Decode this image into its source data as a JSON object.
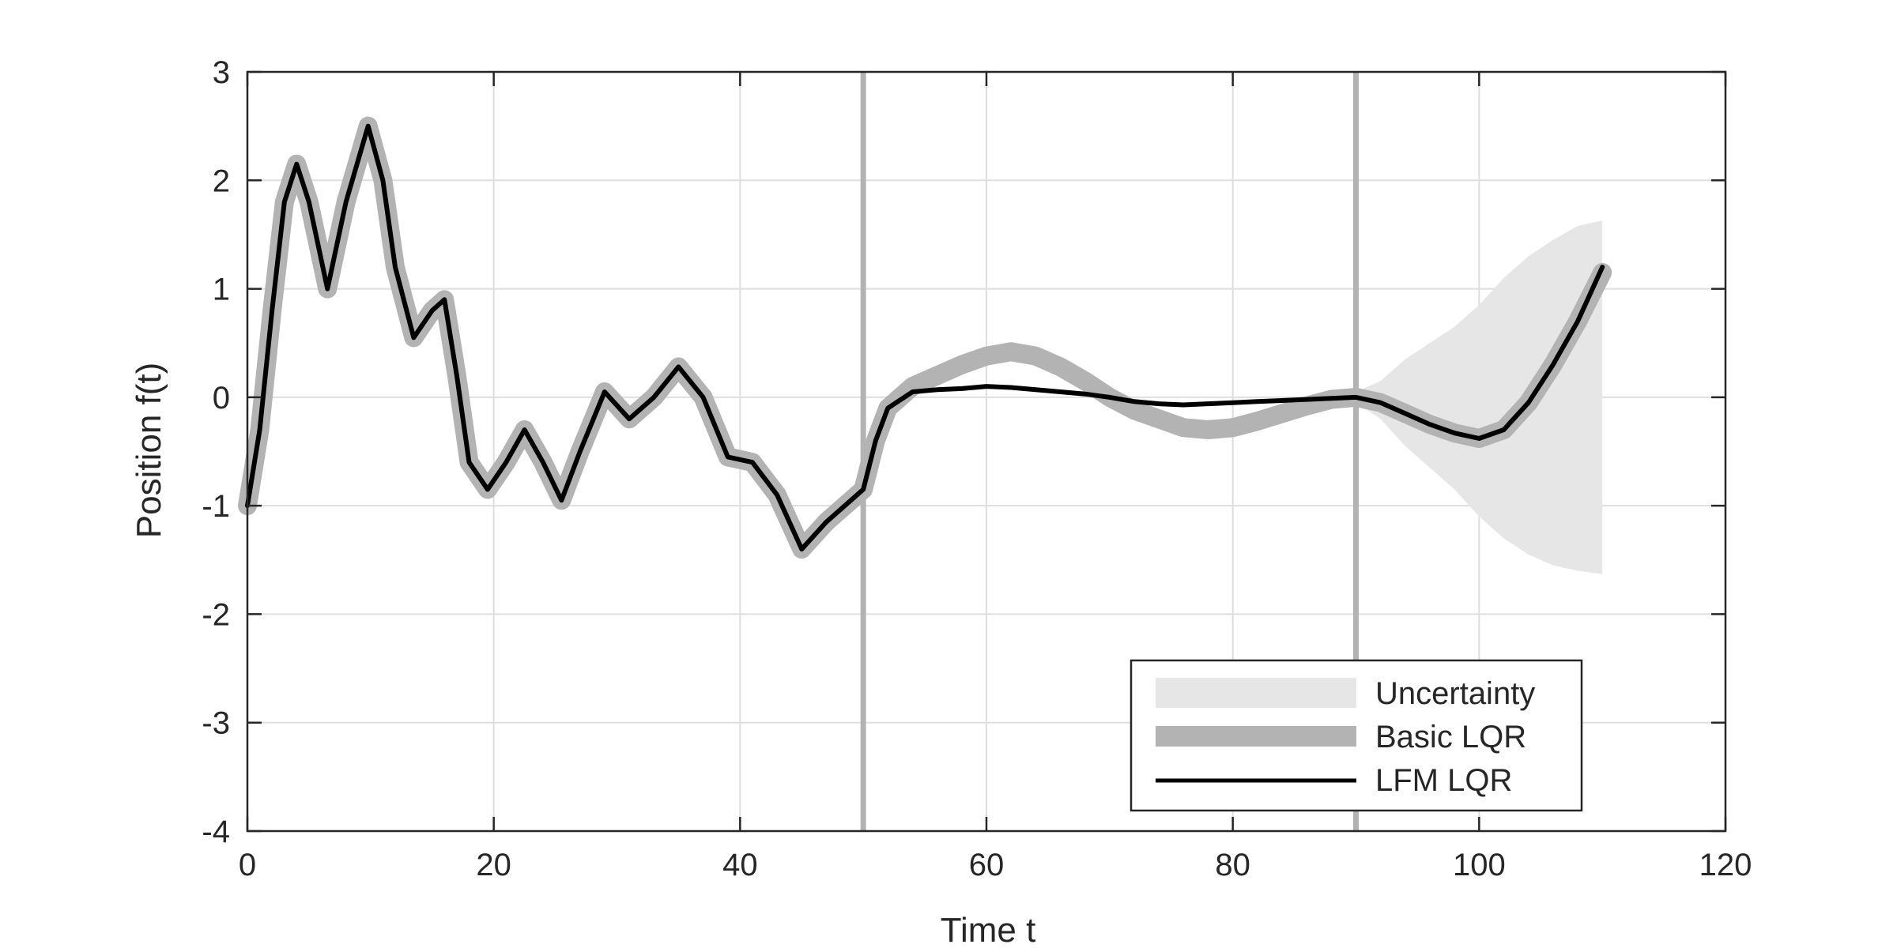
{
  "chart_data": {
    "type": "line",
    "title": "",
    "xlabel": "Time t",
    "ylabel": "Position f(t)",
    "xlim": [
      0,
      120
    ],
    "ylim": [
      -4,
      3
    ],
    "xticks": [
      0,
      20,
      40,
      60,
      80,
      100,
      120
    ],
    "yticks": [
      -4,
      -3,
      -2,
      -1,
      0,
      1,
      2,
      3
    ],
    "grid": true,
    "legend_position": "bottom-right",
    "vertical_markers": [
      50,
      90
    ],
    "colors": {
      "uncertainty": "#e6e6e6",
      "basic": "#b3b3b3",
      "lfm": "#000000",
      "marker": "#b3b3b3",
      "grid": "#dedede"
    },
    "legend": [
      {
        "key": "uncertainty",
        "label": "Uncertainty"
      },
      {
        "key": "basic",
        "label": "Basic LQR"
      },
      {
        "key": "lfm",
        "label": "LFM LQR"
      }
    ],
    "series": [
      {
        "name": "Basic LQR",
        "x": [
          0,
          1,
          2,
          3,
          4,
          5,
          6.5,
          8,
          9.8,
          11,
          12,
          13.5,
          15,
          16,
          17,
          18,
          19.5,
          21,
          22.5,
          24,
          25.5,
          27,
          29,
          31,
          33,
          35,
          37,
          39,
          41,
          43,
          45,
          47,
          49,
          50,
          51,
          52,
          54,
          56,
          58,
          60,
          62,
          64,
          66,
          68,
          70,
          72,
          74,
          76,
          78,
          80,
          82,
          84,
          86,
          88,
          90,
          92,
          94,
          96,
          98,
          100,
          102,
          104,
          106,
          108,
          110
        ],
        "y": [
          -1.0,
          -0.3,
          0.8,
          1.8,
          2.15,
          1.8,
          1.0,
          1.8,
          2.5,
          2.0,
          1.2,
          0.55,
          0.8,
          0.9,
          0.2,
          -0.6,
          -0.85,
          -0.6,
          -0.3,
          -0.6,
          -0.95,
          -0.5,
          0.05,
          -0.2,
          0.0,
          0.28,
          0.0,
          -0.55,
          -0.6,
          -0.9,
          -1.4,
          -1.15,
          -0.95,
          -0.85,
          -0.4,
          -0.1,
          0.1,
          0.2,
          0.3,
          0.38,
          0.42,
          0.38,
          0.28,
          0.15,
          0.0,
          -0.12,
          -0.2,
          -0.28,
          -0.3,
          -0.28,
          -0.22,
          -0.15,
          -0.08,
          -0.02,
          0.0,
          -0.05,
          -0.15,
          -0.25,
          -0.33,
          -0.38,
          -0.3,
          -0.05,
          0.3,
          0.7,
          1.15
        ]
      },
      {
        "name": "LFM LQR",
        "x": [
          0,
          1,
          2,
          3,
          4,
          5,
          6.5,
          8,
          9.8,
          11,
          12,
          13.5,
          15,
          16,
          17,
          18,
          19.5,
          21,
          22.5,
          24,
          25.5,
          27,
          29,
          31,
          33,
          35,
          37,
          39,
          41,
          43,
          45,
          47,
          49,
          50,
          51,
          52,
          54,
          56,
          58,
          60,
          62,
          64,
          66,
          68,
          70,
          72,
          74,
          76,
          78,
          80,
          82,
          84,
          86,
          88,
          90,
          92,
          94,
          96,
          98,
          100,
          102,
          104,
          106,
          108,
          110
        ],
        "y": [
          -1.0,
          -0.3,
          0.8,
          1.8,
          2.15,
          1.8,
          1.0,
          1.8,
          2.5,
          2.0,
          1.2,
          0.55,
          0.8,
          0.9,
          0.2,
          -0.6,
          -0.85,
          -0.6,
          -0.3,
          -0.6,
          -0.95,
          -0.5,
          0.05,
          -0.2,
          0.0,
          0.28,
          0.0,
          -0.55,
          -0.6,
          -0.9,
          -1.4,
          -1.15,
          -0.95,
          -0.85,
          -0.4,
          -0.1,
          0.05,
          0.07,
          0.08,
          0.1,
          0.09,
          0.07,
          0.05,
          0.03,
          0.0,
          -0.04,
          -0.06,
          -0.07,
          -0.06,
          -0.05,
          -0.04,
          -0.03,
          -0.02,
          -0.01,
          0.0,
          -0.05,
          -0.15,
          -0.25,
          -0.33,
          -0.38,
          -0.3,
          -0.05,
          0.3,
          0.7,
          1.2
        ]
      }
    ],
    "uncertainty_band": {
      "x": [
        90,
        92,
        94,
        96,
        98,
        100,
        102,
        104,
        106,
        108,
        110
      ],
      "upper": [
        0.05,
        0.15,
        0.35,
        0.5,
        0.65,
        0.85,
        1.1,
        1.3,
        1.45,
        1.58,
        1.63
      ],
      "lower": [
        -0.05,
        -0.2,
        -0.45,
        -0.65,
        -0.85,
        -1.1,
        -1.3,
        -1.45,
        -1.55,
        -1.6,
        -1.63
      ]
    }
  }
}
